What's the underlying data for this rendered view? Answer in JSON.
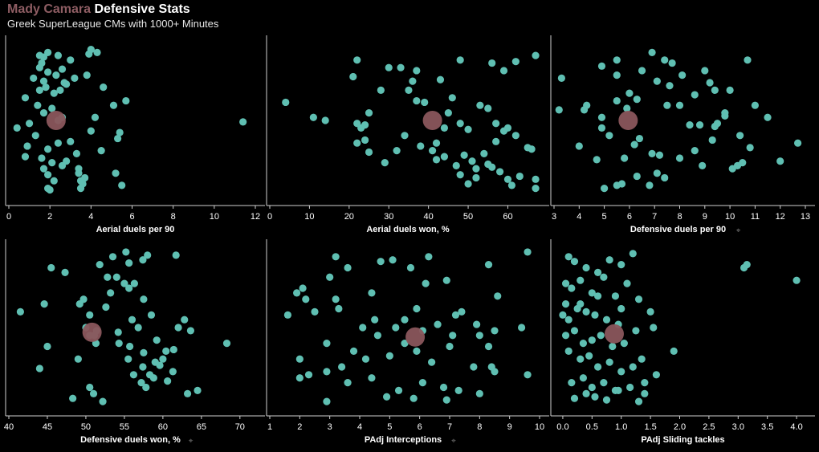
{
  "header": {
    "player_name": "Mady Camara",
    "title_suffix": "Defensive Stats",
    "subtitle": "Greek SuperLeague CMs with 1000+ Minutes"
  },
  "colors": {
    "background": "#000000",
    "point": "#5fbfb2",
    "highlight": "#8a565c",
    "highlight_name": "#8e5d63",
    "axis": "#d0d0d0",
    "label": "#ffffff",
    "pin": "#777777"
  },
  "chart_data": [
    {
      "type": "scatter",
      "xlabel": "Aerial duels per 90",
      "pinned": false,
      "xlim": [
        0,
        12
      ],
      "ticks": [
        0,
        2,
        4,
        6,
        8,
        10,
        12
      ],
      "highlight": 2.3,
      "values": [
        1.5,
        1.6,
        1.7,
        1.9,
        2.4,
        3.0,
        3.9,
        4.0,
        4.3,
        1.5,
        1.9,
        2.6,
        1.2,
        1.7,
        2.3,
        2.7,
        3.2,
        3.8,
        1.5,
        1.8,
        2.2,
        2.5,
        2.8,
        4.6,
        5.1,
        5.7,
        0.8,
        1.4,
        1.7,
        2.1,
        2.6,
        1.0,
        0.4,
        2.4,
        4.2,
        11.4,
        5.4,
        1.3,
        5.3,
        4.0,
        0.9,
        1.9,
        2.4,
        3.0,
        3.3,
        4.5,
        0.8,
        2.8,
        1.6,
        2.1,
        2.6,
        3.4,
        5.2,
        1.7,
        3.4,
        3.7,
        1.9,
        3.5,
        3.6,
        2.2,
        3.5,
        5.5,
        1.9,
        2.0
      ],
      "y": [
        0.93,
        0.88,
        0.92,
        0.95,
        0.93,
        0.9,
        0.94,
        0.97,
        0.95,
        0.85,
        0.82,
        0.84,
        0.78,
        0.76,
        0.8,
        0.75,
        0.78,
        0.8,
        0.7,
        0.72,
        0.68,
        0.7,
        0.74,
        0.72,
        0.6,
        0.63,
        0.65,
        0.6,
        0.55,
        0.58,
        0.52,
        0.48,
        0.45,
        0.5,
        0.52,
        0.49,
        0.42,
        0.4,
        0.38,
        0.43,
        0.33,
        0.31,
        0.35,
        0.36,
        0.28,
        0.3,
        0.26,
        0.23,
        0.25,
        0.22,
        0.2,
        0.18,
        0.15,
        0.18,
        0.15,
        0.12,
        0.14,
        0.1,
        0.08,
        0.1,
        0.05,
        0.07,
        0.05,
        0.04
      ]
    },
    {
      "type": "scatter",
      "xlabel": "Aerial duels won, %",
      "pinned": false,
      "xlim": [
        0,
        68
      ],
      "ticks": [
        0,
        10,
        20,
        30,
        40,
        50,
        60
      ],
      "highlight": 41,
      "values": [
        22,
        33,
        36,
        37,
        48,
        56,
        59,
        62,
        67,
        4,
        11,
        14,
        21,
        22,
        23,
        24,
        25,
        28,
        30,
        35,
        37,
        39,
        43,
        46,
        48,
        50,
        53,
        55,
        57,
        59,
        60,
        65,
        66,
        67,
        22,
        24,
        25,
        29,
        32,
        34,
        38,
        41,
        42,
        44,
        49,
        52,
        55,
        56,
        58,
        60,
        63,
        48,
        50,
        52,
        45,
        44,
        42,
        47,
        51,
        54,
        57,
        62,
        67,
        61
      ],
      "y": [
        0.9,
        0.85,
        0.76,
        0.83,
        0.9,
        0.88,
        0.83,
        0.89,
        0.93,
        0.62,
        0.52,
        0.5,
        0.79,
        0.48,
        0.45,
        0.47,
        0.55,
        0.7,
        0.85,
        0.7,
        0.63,
        0.62,
        0.77,
        0.65,
        0.48,
        0.44,
        0.6,
        0.58,
        0.48,
        0.43,
        0.45,
        0.32,
        0.31,
        0.11,
        0.35,
        0.37,
        0.29,
        0.22,
        0.3,
        0.4,
        0.33,
        0.3,
        0.24,
        0.26,
        0.27,
        0.18,
        0.21,
        0.19,
        0.16,
        0.11,
        0.13,
        0.14,
        0.08,
        0.12,
        0.55,
        0.45,
        0.35,
        0.2,
        0.23,
        0.28,
        0.36,
        0.4,
        0.05,
        0.07
      ]
    },
    {
      "type": "scatter",
      "xlabel": "Defensive duels per 90",
      "pinned": true,
      "xlim": [
        3,
        13
      ],
      "ticks": [
        3,
        4,
        5,
        6,
        7,
        8,
        9,
        10,
        11,
        12,
        13
      ],
      "highlight": 5.95,
      "values": [
        3.3,
        4.3,
        4.9,
        5.5,
        6.0,
        7.1,
        7.4,
        7.7,
        8.1,
        9.0,
        9.4,
        9.8,
        10.0,
        10.7,
        11.0,
        12.7,
        3.2,
        4.2,
        4.9,
        5.5,
        6.5,
        6.9,
        7.6,
        8.0,
        8.6,
        9.2,
        9.8,
        11.5,
        12.0,
        5.5,
        5.9,
        6.3,
        7.5,
        8.4,
        8.8,
        9.4,
        10.4,
        10.8,
        4.0,
        4.9,
        5.2,
        7.2,
        8.0,
        9.3,
        10.1,
        10.3,
        5.0,
        5.8,
        6.3,
        6.8,
        7.1,
        8.6,
        8.9,
        9.5,
        10.5,
        4.7,
        5.5,
        6.4,
        7.4,
        5.7,
        6.2,
        6.9
      ],
      "y": [
        0.78,
        0.6,
        0.86,
        0.9,
        0.68,
        0.76,
        0.9,
        0.88,
        0.8,
        0.83,
        0.7,
        0.55,
        0.7,
        0.9,
        0.6,
        0.35,
        0.57,
        0.57,
        0.52,
        0.8,
        0.83,
        0.95,
        0.73,
        0.6,
        0.67,
        0.75,
        0.53,
        0.52,
        0.23,
        0.63,
        0.58,
        0.64,
        0.6,
        0.47,
        0.47,
        0.46,
        0.4,
        0.32,
        0.33,
        0.45,
        0.4,
        0.27,
        0.25,
        0.37,
        0.18,
        0.2,
        0.05,
        0.25,
        0.13,
        0.07,
        0.15,
        0.3,
        0.2,
        0.48,
        0.22,
        0.24,
        0.07,
        0.38,
        0.12,
        0.08,
        0.34,
        0.28
      ]
    },
    {
      "type": "scatter",
      "xlabel": "Defensive duels won, %",
      "pinned": true,
      "xlim": [
        40,
        72
      ],
      "ticks": [
        40,
        45,
        50,
        55,
        60,
        65,
        70
      ],
      "highlight": 50.8,
      "values": [
        45.5,
        47.3,
        51.8,
        52.8,
        53.5,
        55.2,
        55.6,
        56.3,
        57.4,
        58.0,
        61.7,
        41.5,
        44.6,
        49.2,
        49.7,
        50.5,
        51.1,
        51.4,
        53.2,
        54.0,
        55.0,
        55.6,
        56.8,
        57.5,
        58.5,
        45.0,
        50.0,
        50.5,
        51.3,
        54.3,
        56.0,
        57.4,
        59.2,
        60.4,
        62.0,
        62.8,
        44.0,
        49.0,
        52.6,
        54.2,
        55.5,
        57.5,
        58.8,
        59.6,
        61.3,
        63.6,
        68.3,
        48.3,
        51.0,
        55.7,
        57.2,
        58.3,
        60.0,
        61.4,
        63.2,
        64.5,
        50.5,
        52.2,
        56.2,
        57.8,
        59.0,
        60.6
      ],
      "y": [
        0.88,
        0.85,
        0.9,
        0.82,
        0.95,
        0.98,
        0.91,
        0.78,
        0.93,
        0.96,
        0.96,
        0.6,
        0.65,
        0.65,
        0.68,
        0.58,
        0.45,
        0.48,
        0.72,
        0.82,
        0.78,
        0.75,
        0.5,
        0.68,
        0.58,
        0.38,
        0.5,
        0.45,
        0.4,
        0.4,
        0.55,
        0.25,
        0.42,
        0.35,
        0.5,
        0.55,
        0.24,
        0.3,
        0.63,
        0.47,
        0.3,
        0.34,
        0.18,
        0.26,
        0.22,
        0.48,
        0.4,
        0.05,
        0.08,
        0.38,
        0.15,
        0.2,
        0.3,
        0.36,
        0.08,
        0.1,
        0.12,
        0.03,
        0.2,
        0.12,
        0.28,
        0.16
      ],
      "highlight_y": 0.47
    },
    {
      "type": "scatter",
      "xlabel": "PAdj Interceptions",
      "pinned": true,
      "xlim": [
        1,
        10
      ],
      "ticks": [
        1,
        2,
        3,
        4,
        5,
        6,
        7,
        8,
        9,
        10
      ],
      "highlight": 5.85,
      "values": [
        2.1,
        3.0,
        3.6,
        3.2,
        4.7,
        5.1,
        5.7,
        6.2,
        6.3,
        8.3,
        9.6,
        1.9,
        2.2,
        3.2,
        4.4,
        5.5,
        5.9,
        6.9,
        7.4,
        8.6,
        1.6,
        2.5,
        3.3,
        4.1,
        4.5,
        5.2,
        6.6,
        7.2,
        8.0,
        8.5,
        9.4,
        2.0,
        2.9,
        3.8,
        4.6,
        5.5,
        6.1,
        7.1,
        7.9,
        8.3,
        2.3,
        3.4,
        4.2,
        5.0,
        5.9,
        6.4,
        7.0,
        7.8,
        8.5,
        9.6,
        2.0,
        2.9,
        3.6,
        4.4,
        5.3,
        6.1,
        6.8,
        7.3,
        8.0,
        8.4,
        2.9,
        4.9,
        5.8,
        6.9
      ],
      "y": [
        0.75,
        0.82,
        0.88,
        0.95,
        0.92,
        0.93,
        0.88,
        0.78,
        0.95,
        0.9,
        0.98,
        0.72,
        0.68,
        0.68,
        0.72,
        0.55,
        0.62,
        0.8,
        0.6,
        0.7,
        0.58,
        0.6,
        0.62,
        0.5,
        0.55,
        0.5,
        0.52,
        0.58,
        0.45,
        0.48,
        0.5,
        0.3,
        0.4,
        0.35,
        0.45,
        0.4,
        0.48,
        0.45,
        0.52,
        0.38,
        0.2,
        0.25,
        0.3,
        0.32,
        0.35,
        0.28,
        0.38,
        0.25,
        0.22,
        0.2,
        0.18,
        0.22,
        0.15,
        0.18,
        0.1,
        0.15,
        0.12,
        0.1,
        0.08,
        0.25,
        0.03,
        0.06,
        0.05,
        0.04
      ],
      "highlight_y": 0.44
    },
    {
      "type": "scatter",
      "xlabel": "PAdj Sliding tackles",
      "pinned": false,
      "xlim": [
        -0.15,
        4.15
      ],
      "ticks": [
        0.0,
        0.5,
        1.0,
        1.5,
        2.0,
        2.5,
        3.0,
        3.5,
        4.0
      ],
      "ticklabels": [
        "0.0",
        "0.5",
        "1.0",
        "1.5",
        "2.0",
        "2.5",
        "3.0",
        "3.5",
        "4.0"
      ],
      "highlight": 0.88,
      "values": [
        0.1,
        0.2,
        0.4,
        0.6,
        0.8,
        1.0,
        1.2,
        3.1,
        3.15,
        4.0,
        0.05,
        0.15,
        0.3,
        0.5,
        0.7,
        0.9,
        1.1,
        1.3,
        1.5,
        1.9,
        0.0,
        0.1,
        0.25,
        0.4,
        0.55,
        0.75,
        0.95,
        1.25,
        1.55,
        0.05,
        0.2,
        0.35,
        0.5,
        0.65,
        0.85,
        1.05,
        1.35,
        0.1,
        0.3,
        0.45,
        0.6,
        0.8,
        1.0,
        1.2,
        1.6,
        0.15,
        0.35,
        0.5,
        0.7,
        0.9,
        1.15,
        1.4,
        0.2,
        0.4,
        0.55,
        0.75,
        0.95,
        1.3,
        0.05,
        0.3,
        0.6,
        1.0,
        1.4
      ],
      "y": [
        0.95,
        0.92,
        0.88,
        0.85,
        0.93,
        0.9,
        0.97,
        0.88,
        0.9,
        0.8,
        0.78,
        0.75,
        0.8,
        0.72,
        0.82,
        0.7,
        0.78,
        0.68,
        0.6,
        0.35,
        0.58,
        0.55,
        0.62,
        0.6,
        0.58,
        0.55,
        0.52,
        0.48,
        0.5,
        0.45,
        0.48,
        0.4,
        0.42,
        0.45,
        0.38,
        0.4,
        0.3,
        0.35,
        0.3,
        0.32,
        0.25,
        0.28,
        0.22,
        0.25,
        0.2,
        0.15,
        0.18,
        0.12,
        0.15,
        0.1,
        0.12,
        0.08,
        0.05,
        0.08,
        0.06,
        0.04,
        0.1,
        0.03,
        0.65,
        0.65,
        0.7,
        0.62,
        0.15
      ],
      "highlight_y": 0.46
    }
  ]
}
